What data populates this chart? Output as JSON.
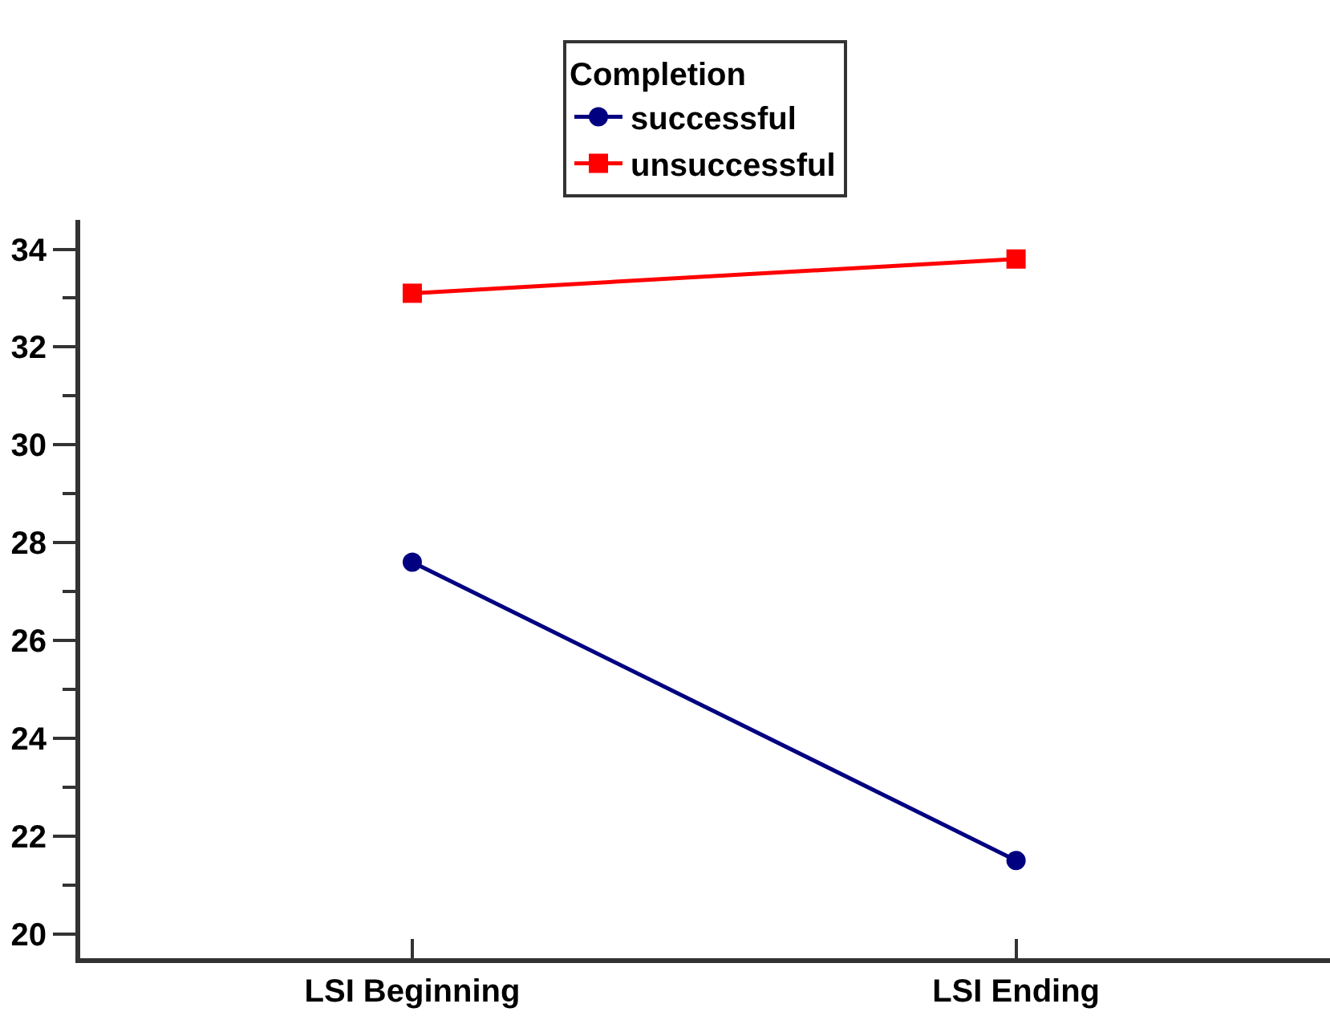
{
  "chart_data": {
    "type": "line",
    "categories": [
      "LSI Beginning",
      "LSI Ending"
    ],
    "legend_title": "Completion",
    "series": [
      {
        "name": "successful",
        "color": "#000080",
        "marker": "circle",
        "values": [
          27.6,
          21.5
        ]
      },
      {
        "name": "unsuccessful",
        "color": "#ff0000",
        "marker": "square",
        "values": [
          33.1,
          33.8
        ]
      }
    ],
    "ylim": [
      19.5,
      34.6
    ],
    "yticks": [
      20,
      22,
      24,
      26,
      28,
      30,
      32,
      34
    ],
    "legend": "top",
    "line_style": "solid"
  }
}
